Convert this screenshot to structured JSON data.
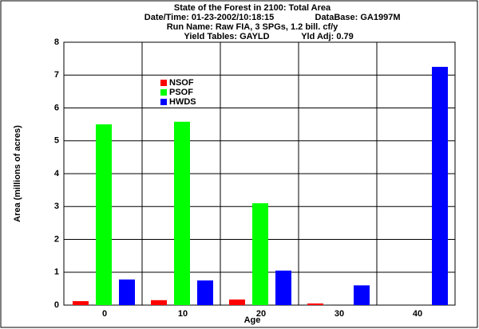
{
  "chart_data": {
    "type": "bar",
    "title": "State of the Forest in 2100: Total Area",
    "subtitle": [
      "Date/Time: 01-23-2002/10:18:15",
      "DataBase: GA1997M",
      "Run Name: Raw FIA, 3 SPGs, 1.2 bill. cf/y",
      "Yield Tables: GAYLD",
      "Yld Adj: 0.79"
    ],
    "x_label": "Age",
    "y_label": "Area (millions of acres)",
    "categories": [
      "0",
      "10",
      "20",
      "30",
      "40"
    ],
    "series": [
      {
        "name": "NSOF",
        "color": "#ff0000",
        "values": [
          0.12,
          0.15,
          0.17,
          0.05,
          0
        ]
      },
      {
        "name": "PSOF",
        "color": "#00ff00",
        "values": [
          5.5,
          5.58,
          3.1,
          0,
          0
        ]
      },
      {
        "name": "HWDS",
        "color": "#0000ff",
        "values": [
          0.78,
          0.75,
          1.05,
          0.6,
          7.25
        ]
      }
    ],
    "ylim": [
      0,
      8
    ],
    "yticks": [
      0,
      1,
      2,
      3,
      4,
      5,
      6,
      7,
      8
    ],
    "grid": true
  }
}
